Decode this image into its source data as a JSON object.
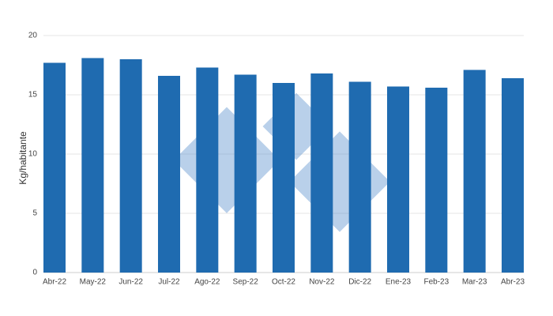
{
  "chart_data": {
    "type": "bar",
    "y_label": "Kg/habitante",
    "categories": [
      "Abr-22",
      "May-22",
      "Jun-22",
      "Jul-22",
      "Ago-22",
      "Sep-22",
      "Oct-22",
      "Nov-22",
      "Dic-22",
      "Ene-23",
      "Feb-23",
      "Mar-23",
      "Abr-23"
    ],
    "values": [
      17.7,
      18.1,
      18.0,
      16.6,
      17.3,
      16.7,
      16.0,
      16.8,
      16.1,
      15.7,
      15.6,
      17.1,
      16.4
    ],
    "color": "#1f6bb0",
    "ylim": [
      0,
      20
    ],
    "yticks": [
      0,
      5,
      10,
      15,
      20
    ],
    "grid": true
  }
}
